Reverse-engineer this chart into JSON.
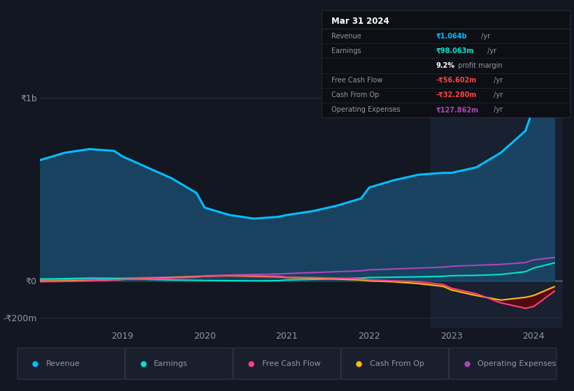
{
  "bg_color": "#131722",
  "plot_bg_color": "#131722",
  "grid_color": "#252d3d",
  "text_color": "#9198a6",
  "years": [
    2018.0,
    2018.3,
    2018.6,
    2018.9,
    2019.0,
    2019.3,
    2019.6,
    2019.9,
    2020.0,
    2020.3,
    2020.6,
    2020.9,
    2021.0,
    2021.3,
    2021.6,
    2021.9,
    2022.0,
    2022.3,
    2022.6,
    2022.9,
    2023.0,
    2023.3,
    2023.6,
    2023.9,
    2024.0,
    2024.25
  ],
  "revenue": [
    660,
    700,
    720,
    710,
    680,
    620,
    560,
    480,
    400,
    360,
    340,
    350,
    360,
    380,
    410,
    450,
    510,
    550,
    580,
    590,
    590,
    620,
    700,
    820,
    950,
    1064
  ],
  "earnings": [
    10,
    12,
    15,
    14,
    12,
    8,
    5,
    3,
    2,
    1,
    0,
    1,
    5,
    8,
    12,
    15,
    18,
    20,
    22,
    25,
    28,
    30,
    35,
    50,
    70,
    98
  ],
  "free_cash_flow": [
    -5,
    -3,
    0,
    5,
    8,
    10,
    15,
    20,
    25,
    30,
    28,
    25,
    20,
    18,
    15,
    10,
    5,
    0,
    -5,
    -20,
    -40,
    -70,
    -120,
    -150,
    -140,
    -57
  ],
  "cash_from_op": [
    -2,
    0,
    2,
    5,
    8,
    12,
    18,
    22,
    25,
    28,
    25,
    22,
    18,
    15,
    10,
    5,
    0,
    -5,
    -15,
    -30,
    -50,
    -80,
    -105,
    -90,
    -80,
    -32
  ],
  "operating_expenses": [
    5,
    8,
    10,
    12,
    15,
    18,
    20,
    25,
    28,
    32,
    35,
    38,
    40,
    45,
    50,
    55,
    60,
    65,
    70,
    75,
    80,
    85,
    90,
    100,
    115,
    128
  ],
  "revenue_color": "#00bfff",
  "earnings_color": "#00e5cc",
  "free_cash_flow_color": "#ff4081",
  "cash_from_op_color": "#ffc107",
  "operating_expenses_color": "#ab47bc",
  "revenue_fill_color": "#1a4a6b",
  "revenue_fill_alpha": 0.85,
  "ylim": [
    -260,
    1150
  ],
  "xlim": [
    2018.0,
    2024.35
  ],
  "yticks": [
    -200,
    0,
    1000
  ],
  "ytick_labels": [
    "-₹200m",
    "₹0",
    "₹1b"
  ],
  "xticks": [
    2019,
    2020,
    2021,
    2022,
    2023,
    2024
  ],
  "info_box": {
    "date": "Mar 31 2024",
    "rows": [
      {
        "label": "Revenue",
        "value": "₹1.064b /yr",
        "value_color": "#00bfff"
      },
      {
        "label": "Earnings",
        "value": "₹98.063m /yr",
        "value_color": "#00e5cc"
      },
      {
        "label": "",
        "value": "9.2% profit margin",
        "value_color": "#cccccc",
        "bold_part": "9.2%"
      },
      {
        "label": "Free Cash Flow",
        "value": "-₹56.602m /yr",
        "value_color": "#ff4444"
      },
      {
        "label": "Cash From Op",
        "value": "-₹32.280m /yr",
        "value_color": "#ff4444"
      },
      {
        "label": "Operating Expenses",
        "value": "₹127.862m /yr",
        "value_color": "#ab47bc"
      }
    ]
  },
  "legend_items": [
    {
      "label": "Revenue",
      "color": "#00bfff"
    },
    {
      "label": "Earnings",
      "color": "#00e5cc"
    },
    {
      "label": "Free Cash Flow",
      "color": "#ff4081"
    },
    {
      "label": "Cash From Op",
      "color": "#ffc107"
    },
    {
      "label": "Operating Expenses",
      "color": "#ab47bc"
    }
  ],
  "highlight_x_start": 2022.75,
  "highlight_x_end": 2024.35,
  "highlight_color": "#1c2535",
  "highlight_alpha": 0.7,
  "zero_line_color": "#ffffff",
  "zero_line_alpha": 0.4,
  "dark_red_fill": "#6b0000"
}
